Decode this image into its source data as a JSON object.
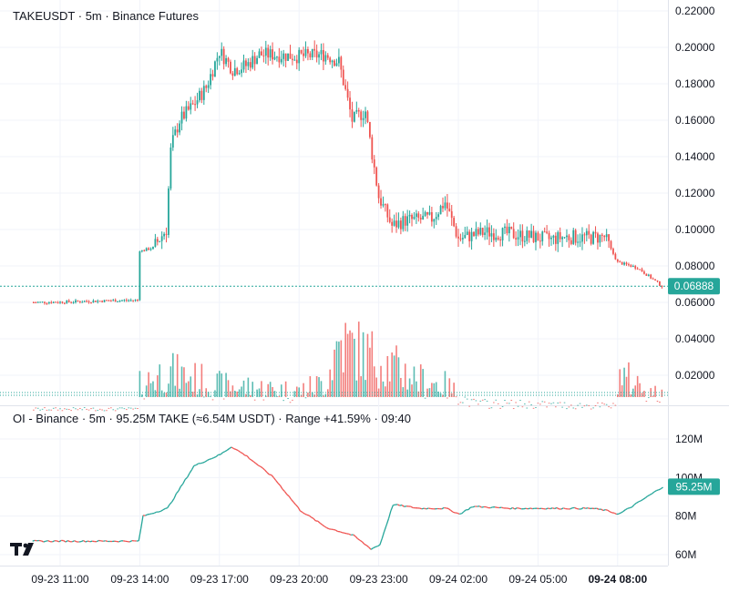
{
  "main_pane": {
    "legend": "TAKEUSDT · 5m · Binance Futures"
  },
  "oi_pane": {
    "legend": "OI - Binance · 5m · 95.25M TAKE (≈6.54M USDT) · Range +41.59% · 09:40"
  },
  "logo_name": "tradingview-logo",
  "colors": {
    "up": "#26a69a",
    "down": "#ef5350",
    "grid": "#f0f3fa",
    "text": "#131722",
    "badge": "#26a69a",
    "volume_ref_line": "#26a69a"
  },
  "chart_data": [
    {
      "type": "candlestick",
      "title": "TAKEUSDT · 5m · Binance Futures",
      "y_ticks": [
        "0.22000",
        "0.20000",
        "0.18000",
        "0.16000",
        "0.14000",
        "0.12000",
        "0.10000",
        "0.08000",
        "0.06000",
        "0.04000",
        "0.02000"
      ],
      "ylim": [
        0.0,
        0.225
      ],
      "x_ticks": [
        "09-23 11:00",
        "09-23 14:00",
        "09-23 17:00",
        "09-23 20:00",
        "09-23 23:00",
        "09-24 02:00",
        "09-24 05:00",
        "09-24 08:00"
      ],
      "last_price": "0.06888",
      "last_price_value": 0.06888,
      "price_path": [
        [
          "09-23 10:00",
          0.06
        ],
        [
          "09-23 11:00",
          0.0602
        ],
        [
          "09-23 12:00",
          0.0606
        ],
        [
          "09-23 13:00",
          0.061
        ],
        [
          "09-23 13:55",
          0.0612
        ],
        [
          "09-23 14:00",
          0.088
        ],
        [
          "09-23 14:30",
          0.09
        ],
        [
          "09-23 15:00",
          0.1
        ],
        [
          "09-23 15:10",
          0.145
        ],
        [
          "09-23 15:30",
          0.16
        ],
        [
          "09-23 16:00",
          0.168
        ],
        [
          "09-23 16:30",
          0.178
        ],
        [
          "09-23 17:00",
          0.198
        ],
        [
          "09-23 17:30",
          0.188
        ],
        [
          "09-23 18:00",
          0.19
        ],
        [
          "09-23 18:30",
          0.196
        ],
        [
          "09-23 19:00",
          0.196
        ],
        [
          "09-23 20:00",
          0.195
        ],
        [
          "09-23 21:00",
          0.196
        ],
        [
          "09-23 21:30",
          0.192
        ],
        [
          "09-23 22:00",
          0.16
        ],
        [
          "09-23 22:30",
          0.165
        ],
        [
          "09-23 23:00",
          0.118
        ],
        [
          "09-23 23:30",
          0.102
        ],
        [
          "09-24 00:00",
          0.105
        ],
        [
          "09-24 01:00",
          0.106
        ],
        [
          "09-24 01:30",
          0.115
        ],
        [
          "09-24 02:00",
          0.095
        ],
        [
          "09-24 03:00",
          0.0985
        ],
        [
          "09-24 04:00",
          0.0975
        ],
        [
          "09-24 05:00",
          0.0955
        ],
        [
          "09-24 05:30",
          0.0945
        ],
        [
          "09-24 06:00",
          0.096
        ],
        [
          "09-24 07:00",
          0.0955
        ],
        [
          "09-24 07:30",
          0.096
        ],
        [
          "09-24 08:00",
          0.082
        ],
        [
          "09-24 08:45",
          0.079
        ],
        [
          "09-24 09:40",
          0.0689
        ]
      ],
      "volume_series": {
        "name": "Volume",
        "levels": [
          [
            "09-23 10:00",
            0.002
          ],
          [
            "09-23 13:55",
            0.002
          ],
          [
            "09-23 14:00",
            0.018
          ],
          [
            "09-23 15:00",
            0.028
          ],
          [
            "09-23 17:00",
            0.018
          ],
          [
            "09-23 20:00",
            0.014
          ],
          [
            "09-23 21:00",
            0.02
          ],
          [
            "09-23 21:30",
            0.048
          ],
          [
            "09-23 23:00",
            0.036
          ],
          [
            "09-24 00:30",
            0.022
          ],
          [
            "09-24 01:30",
            0.018
          ],
          [
            "09-24 02:00",
            0.012
          ],
          [
            "09-24 02:30",
            0.006
          ],
          [
            "09-24 07:59",
            0.004
          ],
          [
            "09-24 08:00",
            0.026
          ],
          [
            "09-24 09:40",
            0.01
          ]
        ]
      }
    },
    {
      "type": "line",
      "title": "OI - Binance · 5m · 95.25M TAKE (≈6.54M USDT) · Range +41.59% · 09:40",
      "y_ticks": [
        "120M",
        "100M",
        "80M",
        "60M"
      ],
      "ylim": [
        55,
        125
      ],
      "last_value_label": "95.25M",
      "last_value": 95.25,
      "series": [
        {
          "values": [
            [
              "09-23 10:00",
              67
            ],
            [
              "09-23 13:55",
              67
            ],
            [
              "09-23 14:05",
              80
            ],
            [
              "09-23 15:00",
              84
            ],
            [
              "09-23 16:00",
              106
            ],
            [
              "09-23 17:00",
              112
            ],
            [
              "09-23 17:25",
              116
            ],
            [
              "09-23 18:00",
              111
            ],
            [
              "09-23 19:00",
              100
            ],
            [
              "09-23 20:00",
              83
            ],
            [
              "09-23 21:00",
              74
            ],
            [
              "09-23 22:00",
              70
            ],
            [
              "09-23 22:40",
              63
            ],
            [
              "09-23 23:00",
              65
            ],
            [
              "09-23 23:30",
              86
            ],
            [
              "09-24 00:30",
              84
            ],
            [
              "09-24 01:30",
              84
            ],
            [
              "09-24 02:00",
              81
            ],
            [
              "09-24 02:30",
              85
            ],
            [
              "09-24 04:00",
              84
            ],
            [
              "09-24 05:00",
              84
            ],
            [
              "09-24 06:00",
              84
            ],
            [
              "09-24 07:00",
              84
            ],
            [
              "09-24 07:30",
              83
            ],
            [
              "09-24 08:00",
              81
            ],
            [
              "09-24 08:30",
              85
            ],
            [
              "09-24 09:40",
              95.25
            ]
          ]
        }
      ]
    }
  ]
}
